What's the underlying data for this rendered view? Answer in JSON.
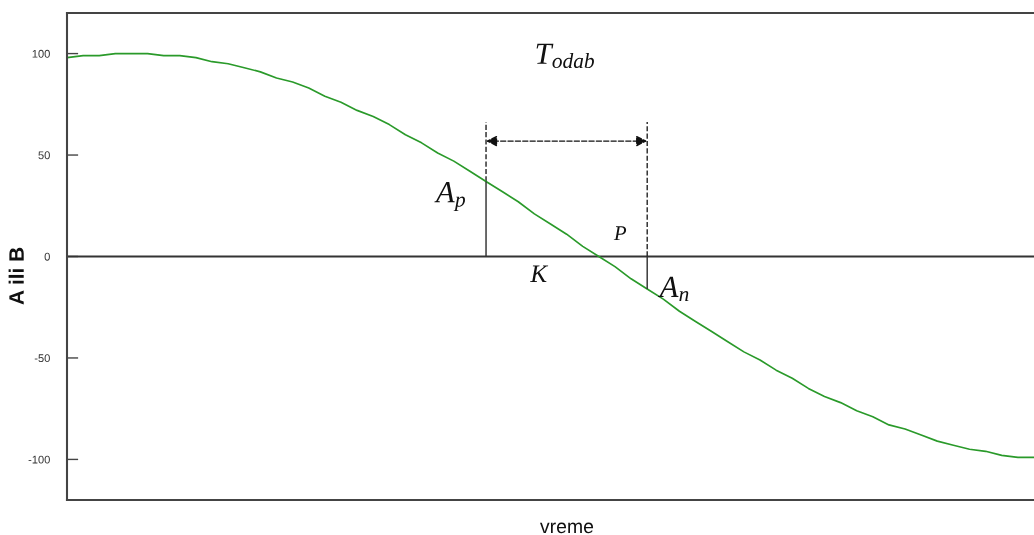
{
  "chart_data": {
    "type": "line",
    "xlabel": "vreme",
    "ylabel": "A ili B",
    "annotations": [
      "T$_{odab}$",
      "A$_{p}$",
      "A$_{n}$",
      "K",
      "P"
    ],
    "categories": [
      null,
      null,
      null,
      null,
      null,
      null,
      null,
      null,
      null,
      null,
      null,
      null,
      null,
      null,
      null,
      null,
      null,
      null,
      null,
      null,
      null,
      null,
      null,
      null,
      null,
      null,
      null,
      null,
      null,
      null,
      null,
      null,
      null,
      null,
      null,
      null,
      null,
      null,
      null,
      null,
      null,
      null,
      null,
      null,
      null,
      null,
      null,
      null,
      null,
      null,
      null,
      null,
      null,
      null,
      null,
      null,
      null,
      null,
      null,
      null,
      null
    ],
    "series": [
      {
        "color": "#2a9a2a",
        "values": [
          98,
          99,
          99,
          100,
          100,
          100,
          99,
          99,
          98,
          96,
          95,
          93,
          91,
          88,
          86,
          83,
          79,
          76,
          72,
          69,
          65,
          60,
          56,
          51,
          47,
          42,
          37,
          32,
          27,
          21,
          16,
          11,
          5,
          0,
          -5,
          -11,
          -16,
          -21,
          -27,
          -32,
          -37,
          -42,
          -47,
          -51,
          -56,
          -60,
          -65,
          -69,
          -72,
          -76,
          -79,
          -83,
          -85,
          -88,
          -91,
          -93,
          -95,
          -96,
          -98,
          -99,
          -99
        ]
      },
      {
        "type": "bar",
        "color": "#333333",
        "values": [
          null,
          null,
          null,
          null,
          null,
          null,
          null,
          null,
          null,
          null,
          null,
          null,
          null,
          null,
          null,
          null,
          null,
          null,
          null,
          null,
          null,
          null,
          null,
          null,
          null,
          null,
          37,
          null,
          null,
          null,
          null,
          null,
          null,
          null,
          null,
          null,
          -16,
          null,
          null,
          null,
          null,
          null,
          null,
          null,
          null,
          null,
          null,
          null,
          null,
          null,
          null,
          null,
          null,
          null,
          null,
          null,
          null,
          null,
          null,
          null,
          null
        ]
      }
    ],
    "ylim": [
      -120,
      120
    ],
    "yticks": [
      -100,
      -50,
      0,
      50,
      100
    ],
    "tick_labels": "y",
    "ref_lines": [
      {
        "axis": "y",
        "value": 0,
        "color": "#333333"
      }
    ]
  }
}
